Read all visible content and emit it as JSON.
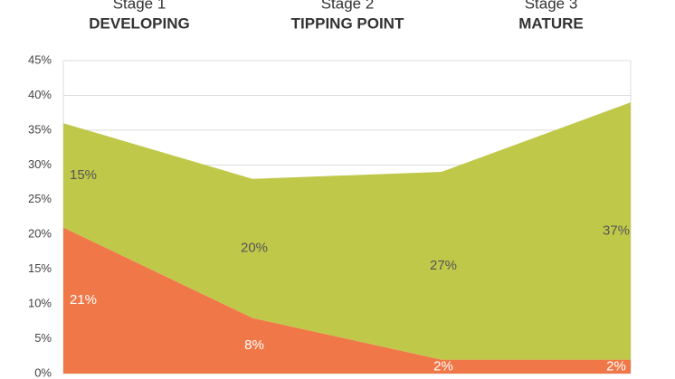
{
  "chart_data": {
    "type": "stacked-area",
    "stages": [
      {
        "label": "Stage 1",
        "name": "DEVELOPING"
      },
      {
        "label": "Stage 2",
        "name": "TIPPING POINT"
      },
      {
        "label": "Stage 3",
        "name": "MATURE"
      }
    ],
    "categories": [
      null,
      null,
      null,
      null
    ],
    "series": [
      {
        "color": "#f07848",
        "values": [
          21,
          8,
          2,
          2
        ],
        "value_labels": [
          "21%",
          "8%",
          "2%",
          "2%"
        ],
        "label_color": "#ffffff"
      },
      {
        "color": "#c0c84a",
        "values": [
          15,
          20,
          27,
          37
        ],
        "value_labels": [
          "15%",
          "20%",
          "27%",
          "37%"
        ],
        "label_color": "#555555"
      }
    ],
    "ylim": [
      0,
      45
    ],
    "yticks": [
      {
        "value": 0,
        "label": "0%"
      },
      {
        "value": 5,
        "label": "5%"
      },
      {
        "value": 10,
        "label": "10%"
      },
      {
        "value": 15,
        "label": "15%"
      },
      {
        "value": 20,
        "label": "20%"
      },
      {
        "value": 25,
        "label": "25%"
      },
      {
        "value": 30,
        "label": "30%"
      },
      {
        "value": 35,
        "label": "35%"
      },
      {
        "value": 40,
        "label": "40%"
      },
      {
        "value": 45,
        "label": "45%"
      }
    ],
    "grid": true
  }
}
